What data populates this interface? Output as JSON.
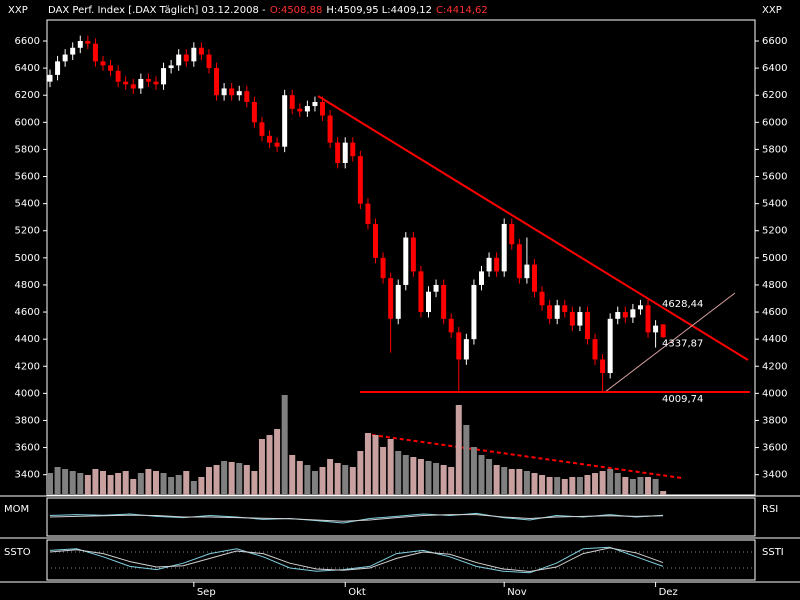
{
  "chart_data": {
    "type": "candlestick",
    "axis_unit": "XXP",
    "header": [
      {
        "text": "DAX Perf. Index [.DAX  Täglich] 03.12.2008 -",
        "color": "#ffffff"
      },
      {
        "text": "O:4508,88",
        "color": "#ff3030"
      },
      {
        "text": "H:4509,95 L:4409,12",
        "color": "#ffffff"
      },
      {
        "text": "C:4414,62",
        "color": "#ff3030"
      }
    ],
    "categories": [
      null,
      null,
      null,
      null,
      null,
      null,
      null,
      null,
      null,
      null,
      null,
      null,
      null,
      null,
      null,
      null,
      null,
      null,
      null,
      "Sep",
      null,
      null,
      null,
      null,
      null,
      null,
      null,
      null,
      null,
      null,
      null,
      null,
      null,
      null,
      null,
      null,
      null,
      null,
      null,
      "Okt",
      null,
      null,
      null,
      null,
      null,
      null,
      null,
      null,
      null,
      null,
      null,
      null,
      null,
      null,
      null,
      null,
      null,
      null,
      null,
      null,
      "Nov",
      null,
      null,
      null,
      null,
      null,
      null,
      null,
      null,
      null,
      null,
      null,
      null,
      null,
      null,
      null,
      null,
      null,
      null,
      null,
      "Dez",
      null
    ],
    "open": [
      6300,
      6350,
      6450,
      6500,
      6550,
      6600,
      6580,
      6450,
      6420,
      6380,
      6300,
      6280,
      6250,
      6320,
      6300,
      6280,
      6400,
      6420,
      6500,
      6450,
      6550,
      6500,
      6400,
      6200,
      6250,
      6200,
      6230,
      6150,
      6000,
      5900,
      5850,
      5820,
      6200,
      6100,
      6080,
      6120,
      6150,
      6050,
      5850,
      5700,
      5850,
      5750,
      5400,
      5250,
      5000,
      4850,
      4550,
      4800,
      5150,
      4900,
      4600,
      4750,
      4800,
      4550,
      4450,
      4250,
      4400,
      4800,
      4900,
      5000,
      4900,
      5250,
      5100,
      4850,
      4950,
      4750,
      4650,
      4550,
      4650,
      4600,
      4500,
      4600,
      4400,
      4250,
      4150,
      4550,
      4600,
      4560,
      4620,
      4650,
      4450,
      4508.88
    ],
    "high": [
      6390,
      6490,
      6540,
      6590,
      6640,
      6640,
      6620,
      6490,
      6460,
      6420,
      6340,
      6320,
      6360,
      6360,
      6340,
      6440,
      6460,
      6540,
      6540,
      6590,
      6590,
      6540,
      6440,
      6290,
      6290,
      6270,
      6270,
      6190,
      6040,
      5940,
      5890,
      6240,
      6240,
      6140,
      6160,
      6190,
      6190,
      6090,
      5890,
      5890,
      5890,
      5790,
      5440,
      5290,
      5040,
      4890,
      4840,
      5190,
      5190,
      4940,
      4790,
      4840,
      4840,
      4590,
      4490,
      4440,
      4840,
      4940,
      5040,
      5040,
      5290,
      5290,
      5140,
      5150,
      4990,
      4790,
      4690,
      4690,
      4690,
      4640,
      4640,
      4640,
      4440,
      4290,
      4590,
      4640,
      4640,
      4660,
      4690,
      4690,
      4540,
      4509.95
    ],
    "low": [
      6260,
      6310,
      6410,
      6460,
      6510,
      6540,
      6410,
      6380,
      6340,
      6260,
      6240,
      6210,
      6210,
      6260,
      6240,
      6240,
      6360,
      6380,
      6410,
      6410,
      6460,
      6360,
      6160,
      6160,
      6160,
      6160,
      6110,
      5960,
      5860,
      5810,
      5780,
      5780,
      6060,
      6040,
      6040,
      6080,
      6010,
      5810,
      5660,
      5660,
      5710,
      5360,
      5210,
      4960,
      4810,
      4300,
      4510,
      4760,
      4860,
      4560,
      4560,
      4710,
      4510,
      4410,
      4020,
      4210,
      4360,
      4760,
      4860,
      4860,
      4860,
      5060,
      4810,
      4810,
      4710,
      4610,
      4510,
      4510,
      4560,
      4460,
      4460,
      4360,
      4210,
      4009.74,
      4110,
      4510,
      4520,
      4520,
      4580,
      4410,
      4337.87,
      4409.12
    ],
    "close": [
      6350,
      6450,
      6500,
      6550,
      6600,
      6580,
      6450,
      6420,
      6380,
      6300,
      6280,
      6250,
      6320,
      6300,
      6280,
      6400,
      6420,
      6500,
      6450,
      6550,
      6500,
      6400,
      6200,
      6250,
      6200,
      6230,
      6150,
      6000,
      5900,
      5850,
      5820,
      6200,
      6100,
      6080,
      6120,
      6150,
      6050,
      5850,
      5700,
      5850,
      5750,
      5400,
      5250,
      5000,
      4850,
      4550,
      4800,
      5150,
      4900,
      4600,
      4750,
      4800,
      4550,
      4450,
      4250,
      4400,
      4800,
      4900,
      5000,
      4900,
      5250,
      5100,
      4850,
      4950,
      4750,
      4650,
      4550,
      4650,
      4600,
      4500,
      4600,
      4400,
      4250,
      4150,
      4550,
      4600,
      4560,
      4620,
      4650,
      4450,
      4500,
      4414.62
    ],
    "up_color": "#ffffff",
    "down_color": "#ff0000",
    "ylim": [
      3250,
      6755
    ],
    "yticks": [
      3400,
      3600,
      3800,
      4000,
      4200,
      4400,
      4600,
      4800,
      5000,
      5200,
      5400,
      5600,
      5800,
      6000,
      6200,
      6400,
      6600
    ],
    "volume": [
      22,
      28,
      26,
      24,
      22,
      20,
      26,
      24,
      20,
      22,
      24,
      16,
      22,
      26,
      24,
      22,
      18,
      20,
      24,
      14,
      18,
      28,
      30,
      34,
      33,
      32,
      30,
      24,
      56,
      60,
      66,
      100,
      40,
      34,
      30,
      24,
      28,
      36,
      32,
      30,
      28,
      44,
      62,
      60,
      48,
      56,
      44,
      40,
      38,
      36,
      34,
      32,
      30,
      28,
      90,
      70,
      48,
      40,
      36,
      30,
      28,
      26,
      26,
      24,
      22,
      20,
      18,
      18,
      16,
      18,
      18,
      20,
      22,
      24,
      26,
      22,
      18,
      16,
      18,
      18,
      16,
      4
    ],
    "vlim": [
      0,
      110
    ],
    "volume_up_color": "#808080",
    "volume_down_color": "#c8a0a0",
    "annotations": [
      {
        "value": 4628.44,
        "label": "4628,44"
      },
      {
        "value": 4337.87,
        "label": "4337,87"
      },
      {
        "value": 4009.74,
        "label": "4009,74"
      }
    ],
    "indicator_panels": [
      {
        "left_label": "MOM",
        "right_label": "RSI",
        "lines": [
          {
            "color": "#80d0e0",
            "values": [
              55,
              58,
              56,
              60,
              52,
              48,
              55,
              50,
              42,
              45,
              38,
              30,
              45,
              52,
              60,
              55,
              62,
              48,
              40,
              55,
              50,
              58,
              50,
              56
            ]
          },
          {
            "color": "#d0d0d0",
            "values": [
              50,
              52,
              54,
              56,
              55,
              50,
              50,
              48,
              46,
              44,
              40,
              36,
              40,
              48,
              55,
              58,
              58,
              50,
              45,
              50,
              52,
              54,
              52,
              54
            ]
          }
        ]
      },
      {
        "left_label": "SSTO",
        "right_label": "SSTI",
        "lines": [
          {
            "color": "#80d0e0",
            "values": [
              80,
              85,
              60,
              30,
              20,
              40,
              70,
              85,
              60,
              25,
              15,
              20,
              30,
              70,
              80,
              60,
              30,
              15,
              10,
              40,
              85,
              90,
              60,
              30
            ]
          },
          {
            "color": "#d0d0d0",
            "values": [
              75,
              82,
              70,
              45,
              28,
              32,
              55,
              78,
              70,
              40,
              22,
              18,
              25,
              55,
              75,
              68,
              42,
              22,
              14,
              28,
              70,
              88,
              72,
              42
            ]
          }
        ]
      }
    ]
  }
}
